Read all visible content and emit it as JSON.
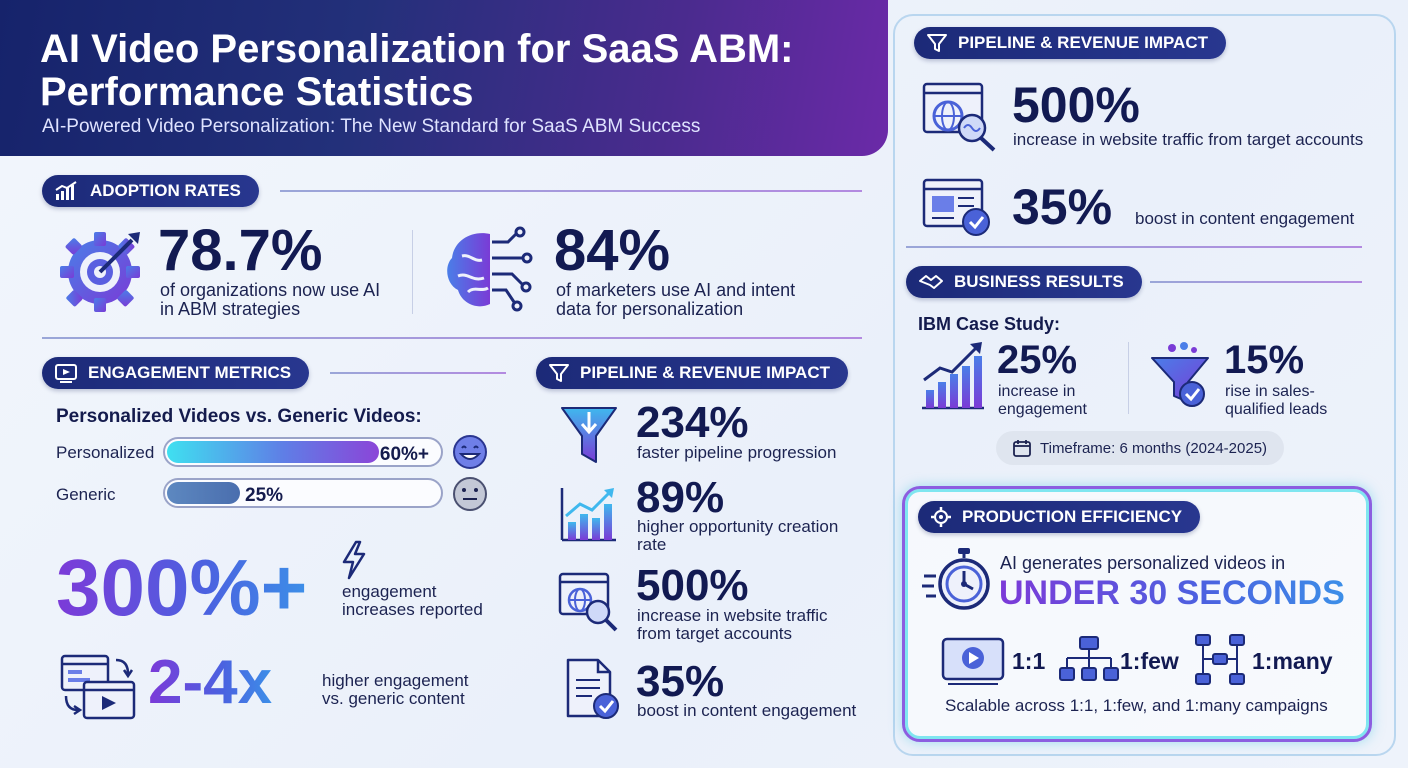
{
  "header": {
    "title": "AI Video Personalization for SaaS ABM: Performance Statistics",
    "subtitle": "AI-Powered Video Personalization: The New Standard for SaaS ABM Success"
  },
  "adoption": {
    "label": "ADOPTION RATES",
    "stat1": {
      "value": "78.7%",
      "line1": "of organizations now use AI",
      "line2": "in ABM strategies"
    },
    "stat2": {
      "value": "84%",
      "line1": "of marketers use AI and intent",
      "line2": "data for personalization"
    }
  },
  "engagement": {
    "label": "ENGAGEMENT METRICS",
    "compare_title": "Personalized Videos vs. Generic Videos:",
    "bars": [
      {
        "label": "Personalized",
        "value_label": "60%+",
        "value": 60
      },
      {
        "label": "Generic",
        "value_label": "25%",
        "value": 25
      }
    ],
    "big_stat": "300%+",
    "big_line1": "engagement",
    "big_line2": "increases reported",
    "multiplier": "2-4x",
    "mult_line1": "higher engagement",
    "mult_line2": "vs. generic content"
  },
  "pipeline_mid": {
    "label": "PIPELINE & REVENUE IMPACT",
    "items": [
      {
        "value": "234%",
        "line1": "faster pipeline progression",
        "line2": ""
      },
      {
        "value": "89%",
        "line1": "higher opportunity creation",
        "line2": "rate"
      },
      {
        "value": "500%",
        "line1": "increase in website traffic",
        "line2": "from target accounts"
      },
      {
        "value": "35%",
        "line1": "boost in content engagement",
        "line2": ""
      }
    ]
  },
  "pipeline_right": {
    "label": "PIPELINE & REVENUE IMPACT",
    "items": [
      {
        "value": "500%",
        "text": "increase in website traffic from target accounts"
      },
      {
        "value": "35%",
        "text": "boost in content engagement"
      }
    ]
  },
  "business": {
    "label": "BUSINESS RESULTS",
    "case_title": "IBM Case Study:",
    "stat1": {
      "value": "25%",
      "line1": "increase in",
      "line2": "engagement"
    },
    "stat2": {
      "value": "15%",
      "line1": "rise in sales-",
      "line2": "qualified leads"
    },
    "timeframe": "Timeframe: 6 months (2024-2025)"
  },
  "production": {
    "label": "PRODUCTION EFFICIENCY",
    "lead": "AI generates personalized videos in",
    "headline": "UNDER 30 SECONDS",
    "modes": [
      "1:1",
      "1:few",
      "1:many"
    ],
    "footer": "Scalable across 1:1, 1:few, and 1:many campaigns"
  },
  "colors": {
    "navy": "#16236b",
    "purple": "#7c3ad8",
    "cyan": "#3fd6ee",
    "blue": "#4b62e0"
  }
}
